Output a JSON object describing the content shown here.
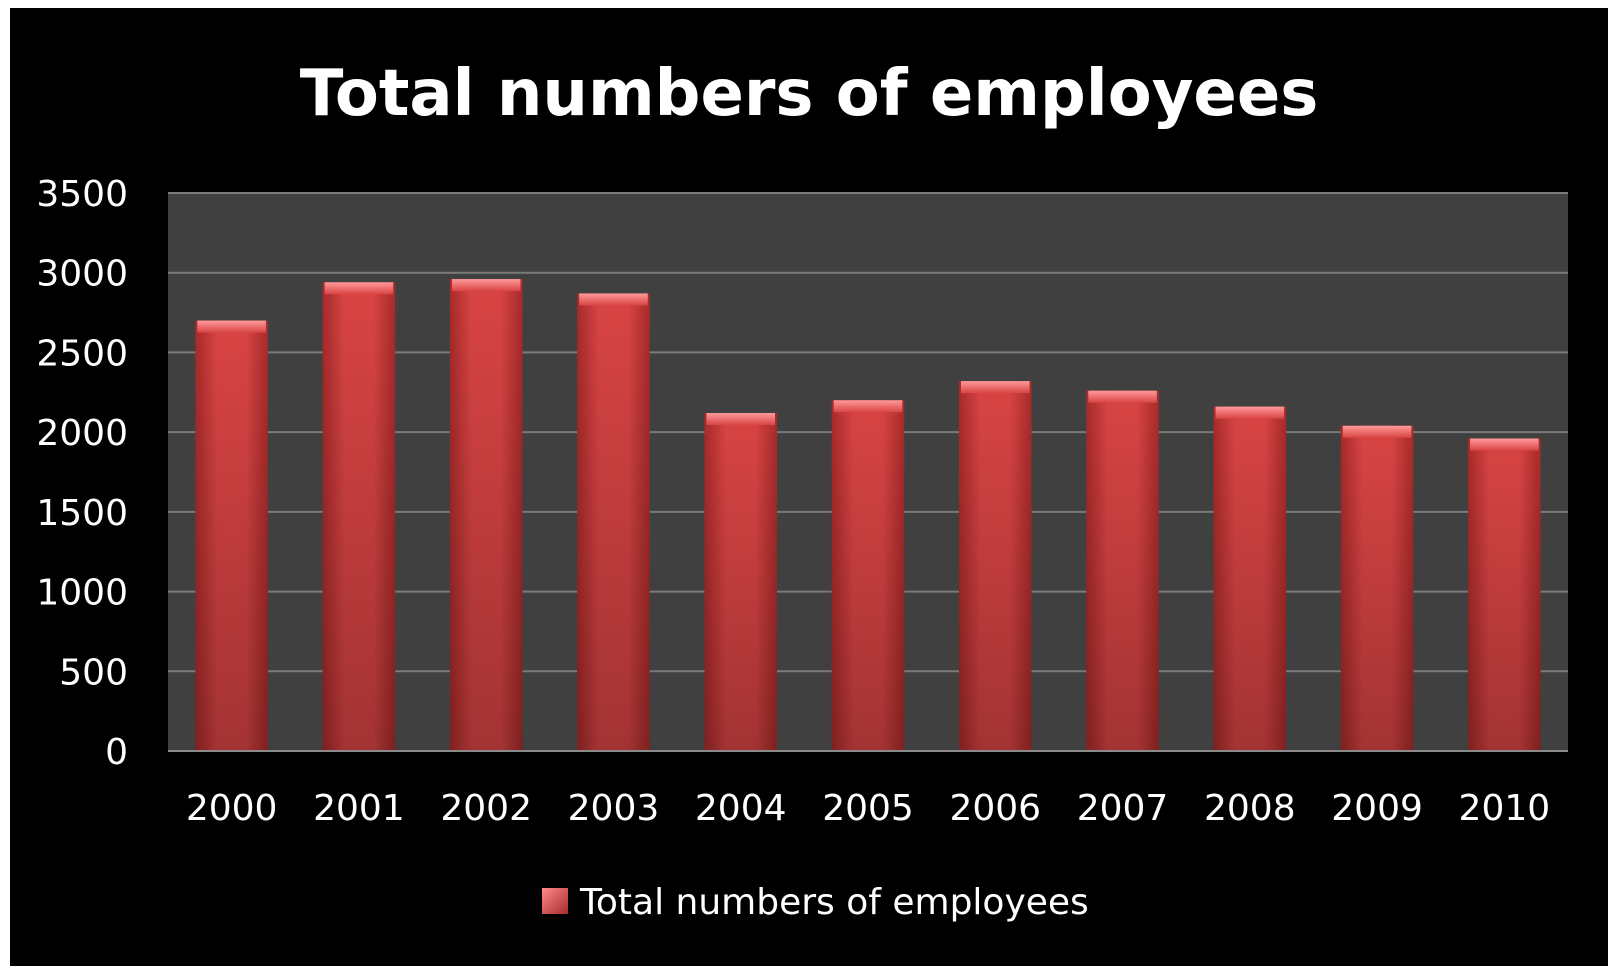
{
  "chart_data": {
    "type": "bar",
    "title": "Total numbers of employees",
    "xlabel": "",
    "ylabel": "",
    "categories": [
      "2000",
      "2001",
      "2002",
      "2003",
      "2004",
      "2005",
      "2006",
      "2007",
      "2008",
      "2009",
      "2010"
    ],
    "series": [
      {
        "name": "Total numbers of employees",
        "values": [
          2700,
          2940,
          2960,
          2870,
          2120,
          2200,
          2320,
          2260,
          2160,
          2040,
          1960
        ]
      }
    ],
    "ylim": [
      0,
      3500
    ],
    "yticks": [
      "0",
      "500",
      "1000",
      "1500",
      "2000",
      "2500",
      "3000",
      "3500"
    ],
    "ytick_values": [
      0,
      500,
      1000,
      1500,
      2000,
      2500,
      3000,
      3500
    ],
    "grid": true,
    "legend_position": "bottom",
    "colors": {
      "background": "#000000",
      "plot_area": "#404040",
      "gridline": "#7a7a7a",
      "bar": "#d94040",
      "bar_dark": "#a82a2a",
      "text": "#ffffff"
    }
  }
}
